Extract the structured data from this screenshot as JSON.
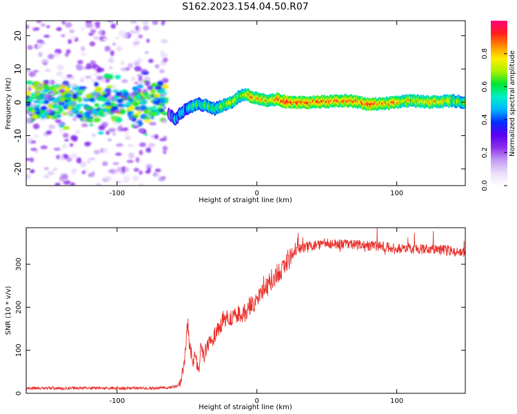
{
  "title": "S162.2023.154.04.50.R07",
  "chart_data": [
    {
      "type": "heatmap",
      "xlabel": "Height of straight line (km)",
      "ylabel": "Frequency (Hz)",
      "xlim": [
        -165,
        149
      ],
      "ylim": [
        -25,
        24.5
      ],
      "x_ticks": [
        -100,
        0,
        100
      ],
      "y_ticks": [
        -20,
        -10,
        0,
        10,
        20
      ],
      "colorbar": {
        "label": "Normalized spectral amplitude",
        "range": [
          0,
          1
        ],
        "ticks": [
          0.0,
          0.2,
          0.4,
          0.6,
          0.8
        ],
        "colors": [
          "#ffffff",
          "#e9ddfb",
          "#c39cf3",
          "#8f2fee",
          "#5a00f0",
          "#0030ff",
          "#00b4ff",
          "#00f0c8",
          "#00e632",
          "#aaf000",
          "#ffee00",
          "#ff8c00",
          "#ff1e1e",
          "#ff0078"
        ]
      },
      "noise_region_x": [
        -165,
        -65
      ],
      "ridge": {
        "x": [
          -63,
          -58,
          -54,
          -48,
          -42,
          -36,
          -30,
          -25,
          -18,
          -12,
          -8,
          -3,
          2,
          8,
          15,
          22,
          35,
          50,
          65,
          80,
          90,
          100,
          110,
          125,
          140,
          149
        ],
        "frequency": [
          -3.5,
          -5,
          -3,
          -1.5,
          -0.5,
          -1,
          -2,
          -1,
          0,
          2,
          2.5,
          1.5,
          1,
          0.5,
          1,
          0,
          0,
          0.2,
          0.5,
          -0.5,
          -0.5,
          0,
          0.5,
          0,
          0.5,
          0
        ],
        "amplitude": [
          0.35,
          0.45,
          0.5,
          0.55,
          0.6,
          0.6,
          0.62,
          0.65,
          0.7,
          0.75,
          0.8,
          0.85,
          0.85,
          0.8,
          0.9,
          0.95,
          0.95,
          0.9,
          0.9,
          0.95,
          0.9,
          0.85,
          0.8,
          0.85,
          0.75,
          0.7
        ]
      }
    },
    {
      "type": "line",
      "xlabel": "Height of straight line (km)",
      "ylabel": "SNR (10 * v/v)",
      "xlim": [
        -165,
        149
      ],
      "ylim": [
        0,
        385
      ],
      "x_ticks": [
        -100,
        0,
        100
      ],
      "y_ticks": [
        0,
        100,
        200,
        300
      ],
      "color": "#e8302a",
      "series": [
        {
          "x": [
            -165,
            -140,
            -120,
            -100,
            -80,
            -65,
            -58,
            -55,
            -52,
            -50,
            -48,
            -46,
            -44,
            -42,
            -40,
            -38,
            -35,
            -30,
            -25,
            -20,
            -15,
            -10,
            -5,
            0,
            5,
            10,
            15,
            20,
            25,
            30,
            40,
            50,
            60,
            70,
            80,
            90,
            100,
            110,
            120,
            130,
            140,
            149
          ],
          "y": [
            12,
            12,
            12,
            12,
            12,
            13,
            15,
            25,
            60,
            150,
            110,
            70,
            90,
            50,
            100,
            85,
            115,
            135,
            165,
            175,
            185,
            180,
            205,
            215,
            240,
            260,
            280,
            300,
            322,
            335,
            345,
            348,
            347,
            345,
            343,
            341,
            338,
            337,
            335,
            333,
            332,
            325
          ]
        }
      ]
    }
  ]
}
